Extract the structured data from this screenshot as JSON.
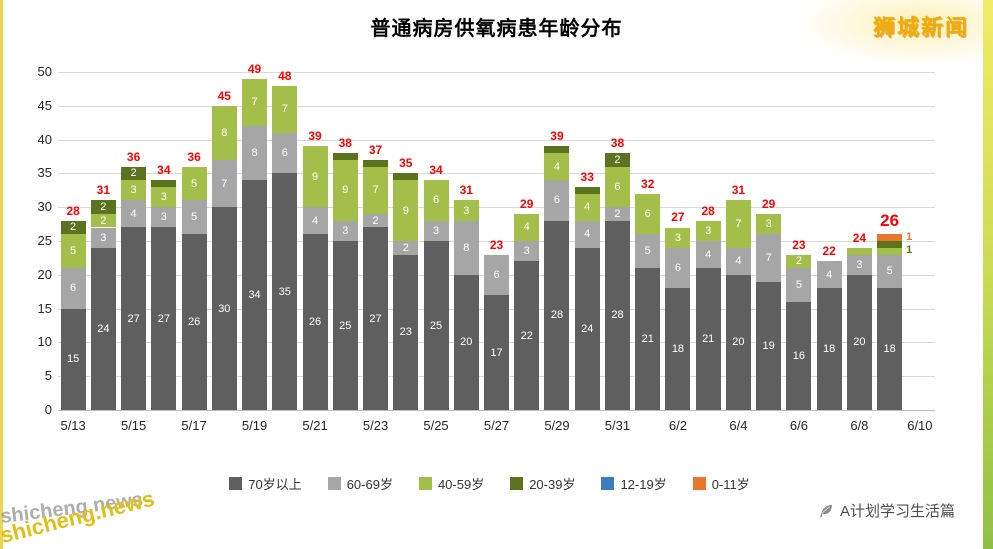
{
  "header": {
    "title": "普通病房供氧病患年龄分布",
    "brand": "狮城新闻"
  },
  "footer": {
    "credit": "A计划学习生活篇",
    "watermark": "shicheng.news",
    "watermark_ghost": "shicheng.news"
  },
  "colors": {
    "total_label": "#ff0000",
    "brand": "#f0ad00",
    "watermark": "#e2bf17"
  },
  "chart_data": {
    "type": "bar",
    "stacked": true,
    "title": "普通病房供氧病患年龄分布",
    "xlabel": "",
    "ylabel": "",
    "ylim": [
      0,
      50
    ],
    "y_ticks": [
      0,
      5,
      10,
      15,
      20,
      25,
      30,
      35,
      40,
      45,
      50
    ],
    "grid": true,
    "legend_position": "bottom",
    "x_slots": 29,
    "x_tick_every": 2,
    "x_ticks": [
      "5/13",
      "5/15",
      "5/17",
      "5/19",
      "5/21",
      "5/23",
      "5/25",
      "5/27",
      "5/29",
      "5/31",
      "6/2",
      "6/4",
      "6/6",
      "6/8",
      "6/10"
    ],
    "series": [
      {
        "name": "70岁以上",
        "color": "#5f5f5f"
      },
      {
        "name": "60-69岁",
        "color": "#a6a6a6"
      },
      {
        "name": "40-59岁",
        "color": "#a3bf4a"
      },
      {
        "name": "20-39岁",
        "color": "#5a731f"
      },
      {
        "name": "12-19岁",
        "color": "#3a7ebf"
      },
      {
        "name": "0-11岁",
        "color": "#e8762c"
      }
    ],
    "days": [
      {
        "date": "5/13",
        "total": 28,
        "values": [
          15,
          6,
          5,
          2,
          0,
          0
        ]
      },
      {
        "date": "5/14",
        "total": 31,
        "values": [
          24,
          3,
          2,
          2,
          0,
          0
        ]
      },
      {
        "date": "5/15",
        "total": 36,
        "values": [
          27,
          4,
          3,
          2,
          0,
          0
        ]
      },
      {
        "date": "5/16",
        "total": 34,
        "values": [
          27,
          3,
          3,
          1,
          0,
          0
        ]
      },
      {
        "date": "5/17",
        "total": 36,
        "values": [
          26,
          5,
          5,
          0,
          0,
          0
        ]
      },
      {
        "date": "5/18",
        "total": 45,
        "values": [
          30,
          7,
          8,
          0,
          0,
          0
        ]
      },
      {
        "date": "5/19",
        "total": 49,
        "values": [
          34,
          8,
          7,
          0,
          0,
          0
        ]
      },
      {
        "date": "5/20",
        "total": 48,
        "values": [
          35,
          6,
          7,
          0,
          0,
          0
        ]
      },
      {
        "date": "5/21",
        "total": 39,
        "values": [
          26,
          4,
          9,
          0,
          0,
          0
        ]
      },
      {
        "date": "5/22",
        "total": 38,
        "values": [
          25,
          3,
          9,
          1,
          0,
          0
        ]
      },
      {
        "date": "5/23",
        "total": 37,
        "values": [
          27,
          2,
          7,
          1,
          0,
          0
        ]
      },
      {
        "date": "5/24",
        "total": 35,
        "values": [
          23,
          2,
          9,
          1,
          0,
          0
        ]
      },
      {
        "date": "5/25",
        "total": 34,
        "values": [
          25,
          3,
          6,
          0,
          0,
          0
        ]
      },
      {
        "date": "5/26",
        "total": 31,
        "values": [
          20,
          8,
          3,
          0,
          0,
          0
        ]
      },
      {
        "date": "5/27",
        "total": 23,
        "values": [
          17,
          6,
          0,
          0,
          0,
          0
        ]
      },
      {
        "date": "5/28",
        "total": 29,
        "values": [
          22,
          3,
          4,
          0,
          0,
          0
        ]
      },
      {
        "date": "5/29",
        "total": 39,
        "values": [
          28,
          6,
          4,
          1,
          0,
          0
        ]
      },
      {
        "date": "5/30",
        "total": 33,
        "values": [
          24,
          4,
          4,
          1,
          0,
          0
        ]
      },
      {
        "date": "5/31",
        "total": 38,
        "values": [
          28,
          2,
          6,
          2,
          0,
          0
        ]
      },
      {
        "date": "6/1",
        "total": 32,
        "values": [
          21,
          5,
          6,
          0,
          0,
          0
        ]
      },
      {
        "date": "6/2",
        "total": 27,
        "values": [
          18,
          6,
          3,
          0,
          0,
          0
        ]
      },
      {
        "date": "6/3",
        "total": 28,
        "values": [
          21,
          4,
          3,
          0,
          0,
          0
        ]
      },
      {
        "date": "6/4",
        "total": 31,
        "values": [
          20,
          4,
          7,
          0,
          0,
          0
        ]
      },
      {
        "date": "6/5",
        "total": 29,
        "values": [
          19,
          7,
          3,
          0,
          0,
          0
        ]
      },
      {
        "date": "6/6",
        "total": 23,
        "values": [
          16,
          5,
          2,
          0,
          0,
          0
        ]
      },
      {
        "date": "6/7",
        "total": 22,
        "values": [
          18,
          4,
          0,
          0,
          0,
          0
        ]
      },
      {
        "date": "6/8",
        "total": 24,
        "values": [
          20,
          3,
          1,
          0,
          0,
          0
        ]
      },
      {
        "date": "6/9",
        "total": 26,
        "values": [
          18,
          5,
          1,
          1,
          0,
          1
        ],
        "emphasis": true,
        "small_labels_outside": true
      }
    ]
  }
}
